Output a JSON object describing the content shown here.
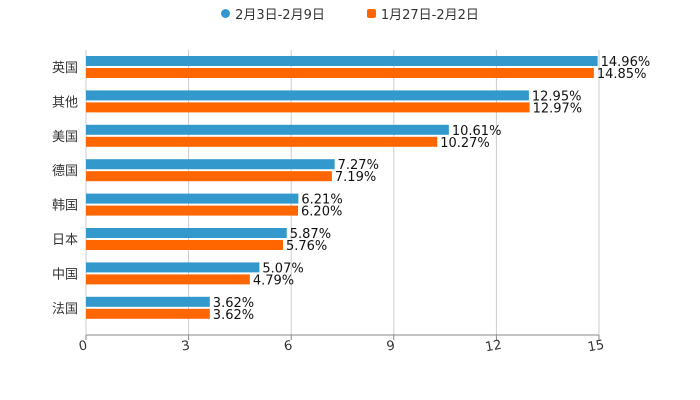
{
  "chart_data": {
    "type": "bar",
    "orientation": "horizontal",
    "title": "",
    "xlabel": "",
    "ylabel": "",
    "xlim": [
      0,
      15
    ],
    "xticks": [
      "0",
      "3",
      "6",
      "9",
      "12",
      "15"
    ],
    "grid": true,
    "legend_position": "top-center",
    "categories": [
      "英国",
      "其他",
      "美国",
      "德国",
      "韩国",
      "日本",
      "中国",
      "法国"
    ],
    "series": [
      {
        "name": "2月3日-2月9日",
        "color": "#3399cc",
        "values": [
          14.96,
          12.95,
          10.61,
          7.27,
          6.21,
          5.87,
          5.07,
          3.62
        ],
        "labels": [
          "14.96%",
          "12.95%",
          "10.61%",
          "7.27%",
          "6.21%",
          "5.87%",
          "5.07%",
          "3.62%"
        ]
      },
      {
        "name": "1月27日-2月2日",
        "color": "#ff6600",
        "values": [
          14.85,
          12.97,
          10.27,
          7.19,
          6.2,
          5.76,
          4.79,
          3.62
        ],
        "labels": [
          "14.85%",
          "12.97%",
          "10.27%",
          "7.19%",
          "6.20%",
          "5.76%",
          "4.79%",
          "3.62%"
        ]
      }
    ]
  }
}
